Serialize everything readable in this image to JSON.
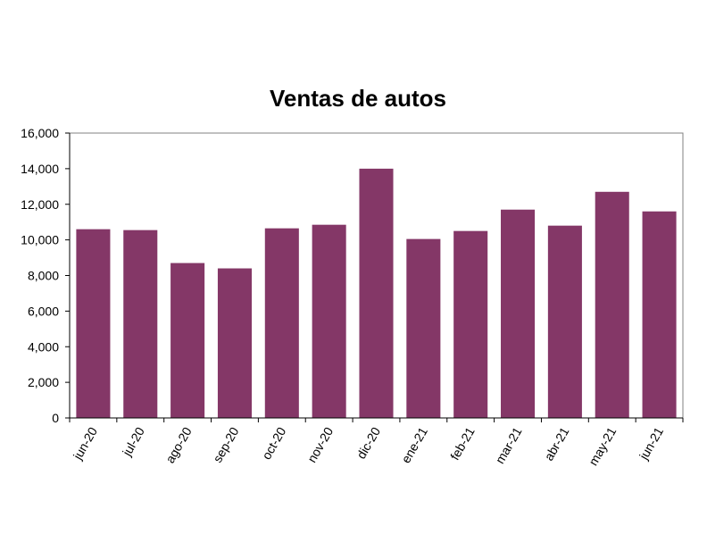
{
  "chart_data": {
    "type": "bar",
    "title": "Ventas de autos",
    "xlabel": "",
    "ylabel": "",
    "categories": [
      "jun-20",
      "jul-20",
      "ago-20",
      "sep-20",
      "oct-20",
      "nov-20",
      "dic-20",
      "ene-21",
      "feb-21",
      "mar-21",
      "abr-21",
      "may-21",
      "jun-21"
    ],
    "values": [
      10600,
      10550,
      8700,
      8400,
      10650,
      10850,
      14000,
      10050,
      10500,
      11700,
      10800,
      12700,
      11600
    ],
    "ylim": [
      0,
      16000
    ],
    "yticks": [
      0,
      2000,
      4000,
      6000,
      8000,
      10000,
      12000,
      14000,
      16000
    ],
    "ytick_labels": [
      "0",
      "2,000",
      "4,000",
      "6,000",
      "8,000",
      "10,000",
      "12,000",
      "14,000",
      "16,000"
    ],
    "grid": false,
    "legend": "none",
    "bar_color": "#843767"
  }
}
